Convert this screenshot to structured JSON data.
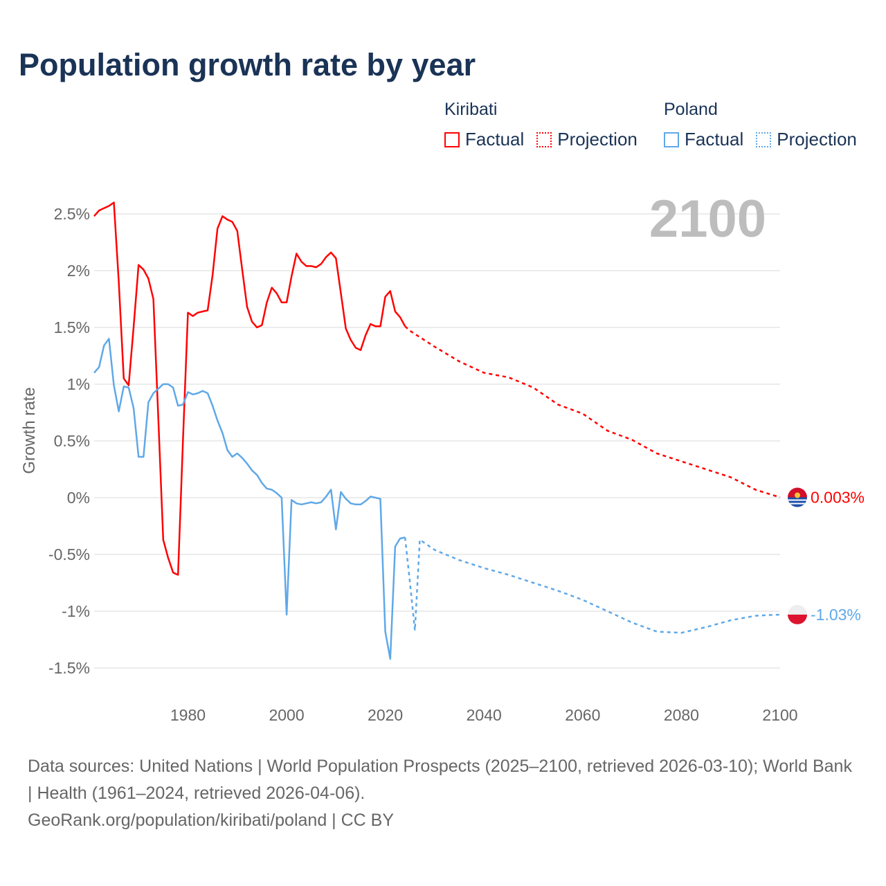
{
  "title": "Population growth rate by year",
  "legend": {
    "groups": [
      {
        "name": "Kiribati",
        "factual": "Factual",
        "projection": "Projection",
        "color": "#ff0000"
      },
      {
        "name": "Poland",
        "factual": "Factual",
        "projection": "Projection",
        "color": "#5fa8e8"
      }
    ]
  },
  "footer": {
    "sources": "Data sources: United Nations | World Population Prospects (2025–2100, retrieved 2026-03-10); World Bank | Health (1961–2024, retrieved 2026-04-06).",
    "credit": "GeoRank.org/population/kiribati/poland | CC BY"
  },
  "chart_data": {
    "type": "line",
    "title": "Population growth rate by year",
    "ylabel": "Growth rate",
    "xlabel": "",
    "year_watermark": "2100",
    "xlim": [
      1961,
      2100
    ],
    "ylim": [
      -1.7,
      2.75
    ],
    "xticks": [
      1980,
      2000,
      2020,
      2040,
      2060,
      2080,
      2100
    ],
    "yticks": [
      -1.5,
      -1,
      -0.5,
      0,
      0.5,
      1,
      1.5,
      2,
      2.5
    ],
    "ytick_labels": [
      "-1.5%",
      "-1%",
      "-0.5%",
      "0%",
      "0.5%",
      "1%",
      "1.5%",
      "2%",
      "2.5%"
    ],
    "grid": true,
    "series": [
      {
        "name": "Kiribati",
        "color": "#ff0000",
        "end_label": "0.003%",
        "factual": {
          "start_year": 1961,
          "values": [
            2.48,
            2.53,
            2.55,
            2.57,
            2.6,
            1.9,
            1.05,
            0.99,
            1.5,
            2.05,
            2.01,
            1.93,
            1.75,
            0.7,
            -0.37,
            -0.53,
            -0.66,
            -0.68,
            0.5,
            1.63,
            1.6,
            1.63,
            1.64,
            1.65,
            1.96,
            2.37,
            2.48,
            2.45,
            2.43,
            2.35,
            2.01,
            1.68,
            1.55,
            1.5,
            1.52,
            1.72,
            1.85,
            1.8,
            1.72,
            1.72,
            1.95,
            2.15,
            2.08,
            2.04,
            2.04,
            2.03,
            2.06,
            2.12,
            2.16,
            2.11,
            1.8,
            1.49,
            1.39,
            1.32,
            1.3,
            1.43,
            1.53,
            1.51,
            1.51,
            1.77,
            1.82,
            1.64,
            1.59,
            1.51
          ]
        },
        "projection": {
          "years": [
            2024,
            2025,
            2030,
            2035,
            2040,
            2045,
            2050,
            2055,
            2060,
            2065,
            2070,
            2075,
            2080,
            2085,
            2090,
            2095,
            2100
          ],
          "values": [
            1.51,
            1.47,
            1.33,
            1.2,
            1.1,
            1.06,
            0.97,
            0.82,
            0.74,
            0.59,
            0.51,
            0.39,
            0.32,
            0.25,
            0.18,
            0.07,
            0.003
          ]
        }
      },
      {
        "name": "Poland",
        "color": "#5fa8e8",
        "end_label": "-1.03%",
        "factual": {
          "start_year": 1961,
          "values": [
            1.1,
            1.15,
            1.34,
            1.4,
            0.99,
            0.76,
            0.98,
            0.97,
            0.79,
            0.36,
            0.36,
            0.84,
            0.92,
            0.96,
            1.0,
            1.0,
            0.97,
            0.81,
            0.82,
            0.93,
            0.91,
            0.92,
            0.94,
            0.92,
            0.81,
            0.68,
            0.57,
            0.42,
            0.36,
            0.39,
            0.35,
            0.3,
            0.24,
            0.2,
            0.13,
            0.08,
            0.07,
            0.04,
            0.0,
            -1.03,
            -0.02,
            -0.05,
            -0.06,
            -0.05,
            -0.04,
            -0.05,
            -0.04,
            0.01,
            0.07,
            -0.28,
            0.05,
            -0.01,
            -0.05,
            -0.06,
            -0.06,
            -0.03,
            0.01,
            0.0,
            -0.01,
            -1.18,
            -1.42,
            -0.43,
            -0.36,
            -0.35
          ]
        },
        "projection": {
          "years": [
            2024,
            2025,
            2026,
            2027,
            2030,
            2035,
            2040,
            2045,
            2050,
            2055,
            2060,
            2065,
            2070,
            2075,
            2080,
            2085,
            2090,
            2095,
            2100
          ],
          "values": [
            -0.35,
            -0.75,
            -1.17,
            -0.37,
            -0.46,
            -0.55,
            -0.62,
            -0.68,
            -0.75,
            -0.82,
            -0.9,
            -1.0,
            -1.1,
            -1.18,
            -1.19,
            -1.14,
            -1.08,
            -1.04,
            -1.03
          ]
        }
      }
    ]
  }
}
